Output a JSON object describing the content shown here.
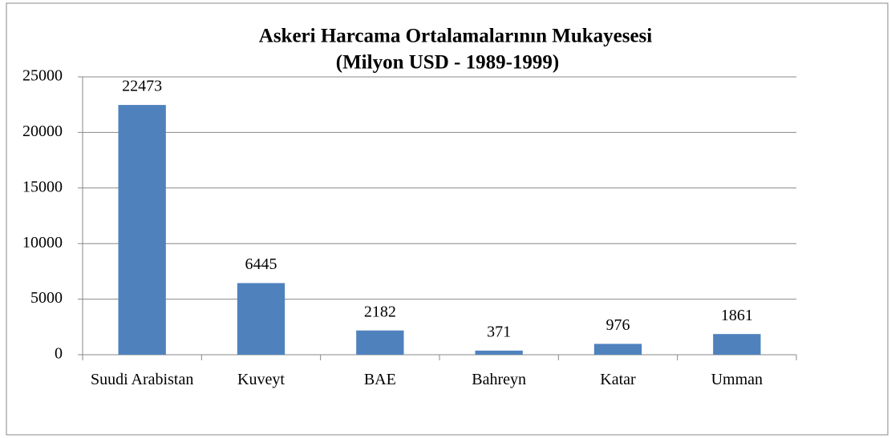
{
  "chart_data": {
    "type": "bar",
    "title": "Askeri Harcama Ortalamalarının Mukayesesi",
    "subtitle": "(Milyon USD - 1989-1999)",
    "categories": [
      "Suudi Arabistan",
      "Kuveyt",
      "BAE",
      "Bahreyn",
      "Katar",
      "Umman"
    ],
    "values": [
      22473,
      6445,
      2182,
      371,
      976,
      1861
    ],
    "color": "#4f81bd",
    "ylim": [
      0,
      25000
    ],
    "yticks": [
      0,
      5000,
      10000,
      15000,
      20000,
      25000
    ],
    "grid": true
  }
}
